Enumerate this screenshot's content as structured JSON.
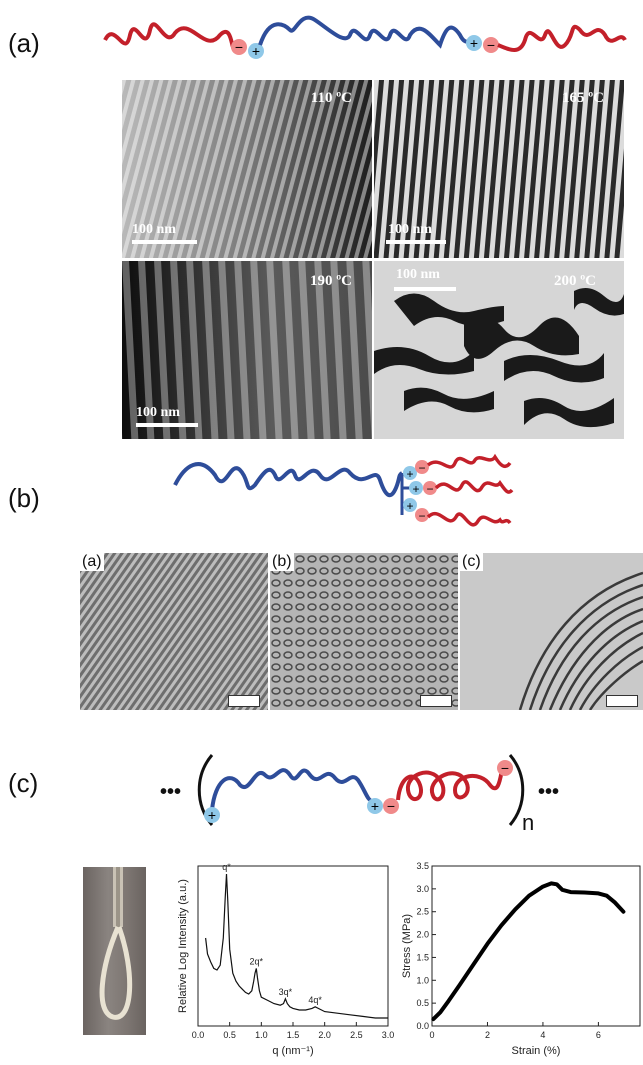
{
  "panels": {
    "a": {
      "label": "(a)",
      "micrographs": [
        {
          "temperature": "110 ºC",
          "scale_bar": "100 nm"
        },
        {
          "temperature": "165 ºC",
          "scale_bar": "100 nm"
        },
        {
          "temperature": "190 ºC",
          "scale_bar": "100 nm"
        },
        {
          "temperature": "200 ºC",
          "scale_bar": "100 nm"
        }
      ]
    },
    "b": {
      "label": "(b)",
      "micrographs": [
        {
          "label": "(a)"
        },
        {
          "label": "(b)"
        },
        {
          "label": "(c)"
        }
      ]
    },
    "c": {
      "label": "(c)",
      "ellipsis": "•••",
      "repeat_subscript": "n"
    }
  },
  "colors": {
    "blue_chain": "#2e4d9a",
    "red_chain": "#c3202a",
    "plus_ion": "#8fc8e8",
    "minus_ion": "#f08a8a"
  },
  "ion_symbols": {
    "plus": "+",
    "minus": "−"
  },
  "chart_data": [
    {
      "type": "line",
      "ylabel": "Relative Log Intensity (a.u.)",
      "xlabel": "q (nm⁻¹)",
      "xlim": [
        0.0,
        3.0
      ],
      "xticks": [
        "0.0",
        "0.5",
        "1.0",
        "1.5",
        "2.0",
        "2.5",
        "3.0"
      ],
      "annotations": [
        {
          "text": "q*",
          "x": 0.45
        },
        {
          "text": "2q*",
          "x": 0.92
        },
        {
          "text": "3q*",
          "x": 1.38
        },
        {
          "text": "4q*",
          "x": 1.85
        }
      ],
      "x": [
        0.12,
        0.15,
        0.2,
        0.25,
        0.3,
        0.35,
        0.4,
        0.43,
        0.45,
        0.47,
        0.5,
        0.55,
        0.6,
        0.65,
        0.7,
        0.75,
        0.8,
        0.85,
        0.88,
        0.9,
        0.92,
        0.94,
        0.97,
        1.0,
        1.1,
        1.2,
        1.3,
        1.35,
        1.38,
        1.41,
        1.45,
        1.5,
        1.6,
        1.7,
        1.8,
        1.85,
        1.9,
        2.0,
        2.2,
        2.4,
        2.6,
        2.8,
        3.0
      ],
      "y": [
        0.55,
        0.45,
        0.4,
        0.36,
        0.35,
        0.38,
        0.55,
        0.8,
        0.95,
        0.78,
        0.48,
        0.33,
        0.28,
        0.25,
        0.23,
        0.21,
        0.2,
        0.22,
        0.28,
        0.33,
        0.36,
        0.3,
        0.22,
        0.18,
        0.16,
        0.14,
        0.13,
        0.14,
        0.17,
        0.14,
        0.12,
        0.11,
        0.1,
        0.1,
        0.11,
        0.12,
        0.11,
        0.09,
        0.08,
        0.07,
        0.06,
        0.05,
        0.05
      ]
    },
    {
      "type": "line",
      "ylabel": "Stress (MPa)",
      "xlabel": "Strain (%)",
      "xlim": [
        0,
        7.5
      ],
      "ylim": [
        0,
        3.5
      ],
      "xticks": [
        "0",
        "2",
        "4",
        "6"
      ],
      "yticks": [
        "0.0",
        "0.5",
        "1.0",
        "1.5",
        "2.0",
        "2.5",
        "3.0",
        "3.5"
      ],
      "x": [
        0.05,
        0.3,
        0.6,
        1.0,
        1.5,
        2.0,
        2.5,
        3.0,
        3.5,
        4.0,
        4.3,
        4.5,
        4.7,
        5.0,
        5.5,
        6.0,
        6.3,
        6.6,
        6.9
      ],
      "y": [
        0.15,
        0.3,
        0.55,
        0.9,
        1.35,
        1.8,
        2.2,
        2.55,
        2.85,
        3.05,
        3.12,
        3.1,
        2.98,
        2.93,
        2.92,
        2.9,
        2.85,
        2.7,
        2.5
      ]
    }
  ]
}
